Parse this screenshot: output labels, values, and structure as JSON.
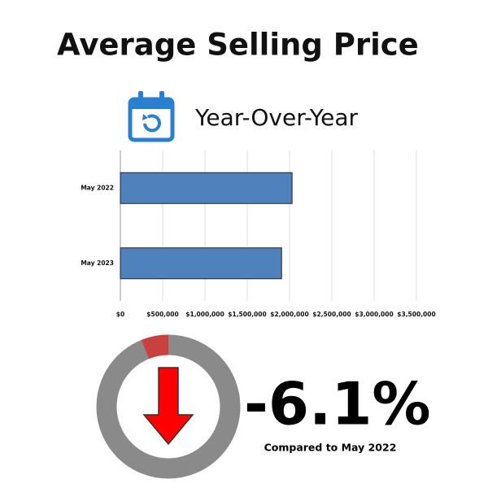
{
  "title": "Average Selling Price",
  "subtitle": "Year-Over-Year",
  "chart_data": {
    "type": "hbar",
    "categories": [
      "May 2022",
      "May 2023"
    ],
    "values": [
      2030000,
      1906000
    ],
    "color": "#4f81bd",
    "xlim": [
      0,
      3500000
    ],
    "xticks": [
      {
        "value": 0,
        "label": "$0"
      },
      {
        "value": 500000,
        "label": "$500,000"
      },
      {
        "value": 1000000,
        "label": "$1,000,000"
      },
      {
        "value": 1500000,
        "label": "$1,500,000"
      },
      {
        "value": 2000000,
        "label": "$2,000,000"
      },
      {
        "value": 2500000,
        "label": "$2,500,000"
      },
      {
        "value": 3000000,
        "label": "$3,000,000"
      },
      {
        "value": 3500000,
        "label": "$3,500,000"
      }
    ],
    "grid": true
  },
  "change": {
    "value": -6.1,
    "label": "-6.1%",
    "note": "Compared to May 2022"
  }
}
